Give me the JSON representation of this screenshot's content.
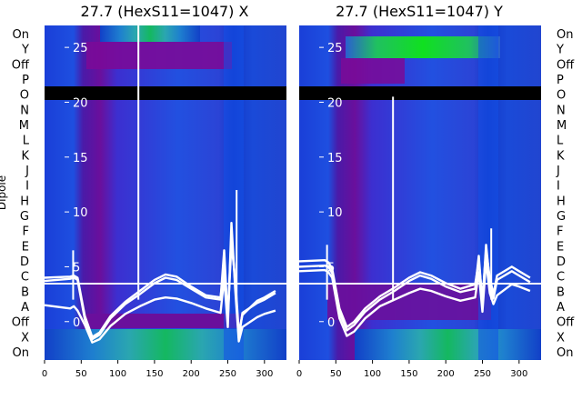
{
  "chart_data": [
    {
      "type": "heatmap",
      "title": "27.7 (HexS11=1047) X",
      "xlabel": "",
      "ylabel": "Dipole",
      "xlim": [
        0,
        330
      ],
      "xticks": [
        0,
        50,
        100,
        150,
        200,
        250,
        300
      ],
      "overlay_ylim": [
        -3.5,
        27
      ],
      "overlay_yticks": [
        0,
        5,
        10,
        15,
        20,
        25
      ],
      "row_labels": [
        "On",
        "X",
        "Off",
        "A",
        "B",
        "C",
        "D",
        "E",
        "F",
        "G",
        "H",
        "I",
        "J",
        "K",
        "L",
        "M",
        "N",
        "O",
        "P",
        "Off",
        "Y",
        "On"
      ],
      "series": [
        {
          "x": [
            0,
            35,
            40,
            45,
            55,
            65,
            75,
            90,
            110,
            130,
            150,
            165,
            180,
            200,
            220,
            240,
            245,
            250,
            255,
            260,
            265,
            270,
            290,
            300,
            315
          ],
          "y": [
            4.0,
            4.1,
            4.2,
            4.0,
            0.5,
            -1.4,
            -1.0,
            0.5,
            1.8,
            2.8,
            3.8,
            4.3,
            4.1,
            3.2,
            2.4,
            2.2,
            5.0,
            0.6,
            7.0,
            4.0,
            -1.0,
            0.6,
            1.9,
            2.2,
            2.8
          ]
        },
        {
          "x": [
            0,
            35,
            40,
            45,
            55,
            65,
            75,
            90,
            110,
            130,
            150,
            165,
            180,
            200,
            220,
            240,
            245,
            250,
            255,
            260,
            265,
            270,
            290,
            300,
            315
          ],
          "y": [
            3.7,
            3.9,
            4.0,
            3.8,
            0.2,
            -1.6,
            -1.2,
            0.3,
            1.6,
            2.5,
            3.5,
            4.0,
            3.8,
            3.0,
            2.2,
            2.0,
            6.5,
            0.2,
            8.0,
            3.5,
            -1.5,
            0.8,
            1.7,
            2.0,
            2.6
          ]
        },
        {
          "x": [
            0,
            35,
            40,
            45,
            55,
            65,
            75,
            90,
            110,
            130,
            150,
            165,
            180,
            200,
            220,
            240,
            245,
            250,
            255,
            260,
            265,
            270,
            290,
            300,
            315
          ],
          "y": [
            1.5,
            1.2,
            1.4,
            1.0,
            -0.3,
            -1.9,
            -1.6,
            -0.4,
            0.7,
            1.4,
            2.0,
            2.2,
            2.1,
            1.7,
            1.2,
            0.8,
            4.0,
            -0.5,
            9.0,
            3.0,
            -1.8,
            -0.5,
            0.4,
            0.7,
            1.0
          ]
        }
      ],
      "spikes": [
        {
          "x": 39,
          "y": 6.5
        },
        {
          "x": 128,
          "y": 27
        },
        {
          "x": 262,
          "y": 12.0
        }
      ]
    },
    {
      "type": "heatmap",
      "title": "27.7 (HexS11=1047) Y",
      "xlabel": "",
      "ylabel": "",
      "xlim": [
        0,
        330
      ],
      "xticks": [
        0,
        50,
        100,
        150,
        200,
        250,
        300
      ],
      "overlay_ylim": [
        -3.5,
        27
      ],
      "overlay_yticks": [
        0,
        5,
        10,
        15,
        20,
        25
      ],
      "row_labels": [
        "On",
        "X",
        "Off",
        "A",
        "B",
        "C",
        "D",
        "E",
        "F",
        "G",
        "H",
        "I",
        "J",
        "K",
        "L",
        "M",
        "N",
        "O",
        "P",
        "Off",
        "Y",
        "On"
      ],
      "series": [
        {
          "x": [
            0,
            35,
            40,
            45,
            55,
            65,
            75,
            90,
            110,
            130,
            150,
            165,
            180,
            200,
            220,
            240,
            245,
            250,
            255,
            260,
            265,
            270,
            290,
            300,
            315
          ],
          "y": [
            5.5,
            5.6,
            5.4,
            4.8,
            1.2,
            -0.5,
            0.0,
            1.2,
            2.3,
            3.1,
            4.0,
            4.5,
            4.2,
            3.5,
            3.0,
            3.4,
            5.5,
            2.0,
            6.5,
            4.0,
            2.5,
            4.2,
            5.0,
            4.6,
            4.0
          ]
        },
        {
          "x": [
            0,
            35,
            40,
            45,
            55,
            65,
            75,
            90,
            110,
            130,
            150,
            165,
            180,
            200,
            220,
            240,
            245,
            250,
            255,
            260,
            265,
            270,
            290,
            300,
            315
          ],
          "y": [
            5.0,
            5.1,
            5.0,
            4.4,
            0.8,
            -0.8,
            -0.3,
            0.9,
            2.0,
            2.8,
            3.7,
            4.2,
            3.9,
            3.2,
            2.7,
            3.0,
            6.0,
            1.5,
            7.0,
            3.6,
            2.1,
            3.8,
            4.6,
            4.2,
            3.6
          ]
        },
        {
          "x": [
            0,
            35,
            40,
            45,
            55,
            65,
            75,
            90,
            110,
            130,
            150,
            165,
            180,
            200,
            220,
            240,
            245,
            250,
            255,
            260,
            265,
            270,
            290,
            300,
            315
          ],
          "y": [
            4.6,
            4.7,
            4.5,
            4.0,
            0.3,
            -1.3,
            -0.9,
            0.3,
            1.4,
            2.0,
            2.6,
            3.0,
            2.8,
            2.3,
            1.9,
            2.2,
            4.5,
            0.9,
            5.5,
            2.6,
            1.6,
            2.4,
            3.4,
            3.2,
            2.8
          ]
        }
      ],
      "spikes": [
        {
          "x": 38,
          "y": 7.0
        },
        {
          "x": 128,
          "y": 20.5
        },
        {
          "x": 262,
          "y": 8.5
        }
      ]
    }
  ]
}
